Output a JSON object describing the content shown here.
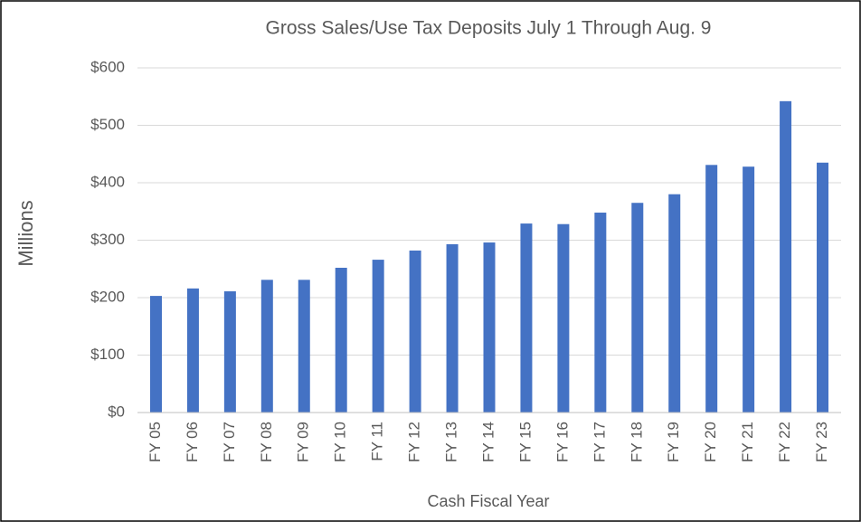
{
  "chart_data": {
    "type": "bar",
    "title": "Gross Sales/Use Tax Deposits July 1 Through Aug. 9",
    "y_label": "Millions",
    "x_label": "Cash Fiscal Year",
    "categories": [
      "FY 05",
      "FY 06",
      "FY 07",
      "FY 08",
      "FY 09",
      "FY 10",
      "FY 11",
      "FY 12",
      "FY 13",
      "FY 14",
      "FY 15",
      "FY 16",
      "FY 17",
      "FY 18",
      "FY 19",
      "FY 20",
      "FY 21",
      "FY 22",
      "FY 23"
    ],
    "values": [
      203,
      216,
      211,
      231,
      231,
      252,
      266,
      282,
      293,
      296,
      329,
      328,
      348,
      365,
      380,
      431,
      428,
      542,
      435
    ],
    "color": "#4472c4",
    "ylim": [
      0,
      600
    ],
    "yticks": [
      {
        "value": 0,
        "label": "$0"
      },
      {
        "value": 100,
        "label": "$100"
      },
      {
        "value": 200,
        "label": "$200"
      },
      {
        "value": 300,
        "label": "$300"
      },
      {
        "value": 400,
        "label": "$400"
      },
      {
        "value": 500,
        "label": "$500"
      },
      {
        "value": 600,
        "label": "$600"
      }
    ],
    "grid": true
  }
}
